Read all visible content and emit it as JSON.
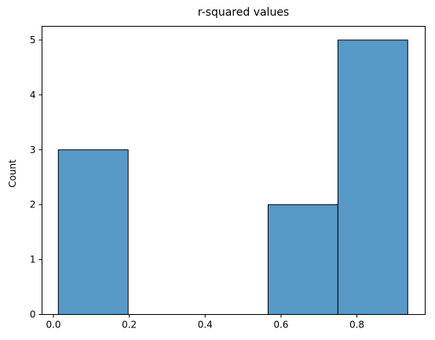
{
  "chart_data": {
    "type": "bar",
    "title": "r-squared values",
    "xlabel": "",
    "ylabel": "Count",
    "xlim": [
      -0.03,
      0.98
    ],
    "ylim": [
      0,
      5.25
    ],
    "xticks": [
      0.0,
      0.2,
      0.4,
      0.6,
      0.8
    ],
    "xtick_labels": [
      "0.0",
      "0.2",
      "0.4",
      "0.6",
      "0.8"
    ],
    "yticks": [
      0,
      1,
      2,
      3,
      4,
      5
    ],
    "ytick_labels": [
      "0",
      "1",
      "2",
      "3",
      "4",
      "5"
    ],
    "grid": false,
    "bar_color": "#5799c7",
    "bar_edge_color": "#000000",
    "bins": [
      {
        "x0": 0.013,
        "x1": 0.197,
        "count": 3
      },
      {
        "x0": 0.197,
        "x1": 0.381,
        "count": 0
      },
      {
        "x0": 0.381,
        "x1": 0.566,
        "count": 0
      },
      {
        "x0": 0.566,
        "x1": 0.75,
        "count": 2
      },
      {
        "x0": 0.75,
        "x1": 0.934,
        "count": 5
      }
    ]
  }
}
